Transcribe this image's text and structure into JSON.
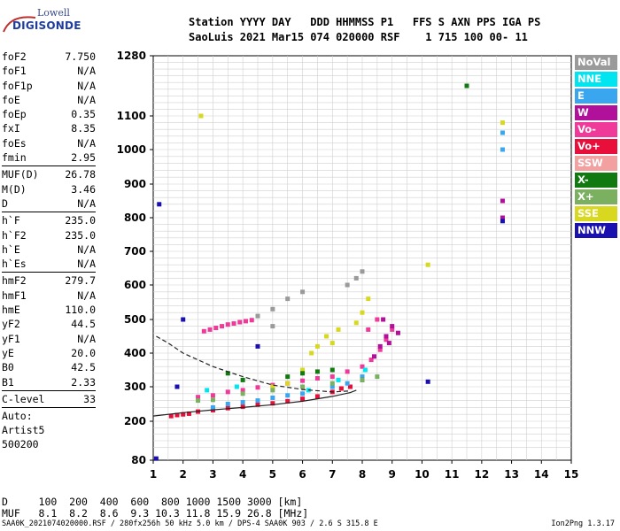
{
  "logo": {
    "brand": "Lowell",
    "product": "DIGISONDE"
  },
  "header": {
    "line1": "Station YYYY DAY   DDD HHMMSS P1   FFS S AXN PPS IGA PS",
    "line2": "SaoLuis 2021 Mar15 074 020000 RSF    1 715 100 00- 11"
  },
  "params": [
    {
      "label": "foF2",
      "value": "7.750"
    },
    {
      "label": "foF1",
      "value": "N/A"
    },
    {
      "label": "foF1p",
      "value": "N/A"
    },
    {
      "label": "foE",
      "value": "N/A"
    },
    {
      "label": "foEp",
      "value": "0.35"
    },
    {
      "label": "fxI",
      "value": "8.35"
    },
    {
      "label": "foEs",
      "value": "N/A"
    },
    {
      "label": "fmin",
      "value": "2.95"
    },
    {
      "sep": true
    },
    {
      "label": "MUF(D)",
      "value": "26.78"
    },
    {
      "label": "M(D)",
      "value": "3.46"
    },
    {
      "label": "D",
      "value": "N/A"
    },
    {
      "sep": true
    },
    {
      "label": "h`F",
      "value": "235.0"
    },
    {
      "label": "h`F2",
      "value": "235.0"
    },
    {
      "label": "h`E",
      "value": "N/A"
    },
    {
      "label": "h`Es",
      "value": "N/A"
    },
    {
      "sep": true
    },
    {
      "label": "hmF2",
      "value": "279.7"
    },
    {
      "label": "hmF1",
      "value": "N/A"
    },
    {
      "label": "hmE",
      "value": "110.0"
    },
    {
      "label": "yF2",
      "value": "44.5"
    },
    {
      "label": "yF1",
      "value": "N/A"
    },
    {
      "label": "yE",
      "value": "20.0"
    },
    {
      "label": "B0",
      "value": "42.5"
    },
    {
      "label": "B1",
      "value": "2.33"
    },
    {
      "sep": true
    },
    {
      "label": "C-level",
      "value": "33"
    },
    {
      "sep": true
    },
    {
      "text": "Auto:"
    },
    {
      "text": "Artist5"
    },
    {
      "text": "500200"
    }
  ],
  "legend": [
    {
      "label": "NoVal",
      "color": "#9a9a9a"
    },
    {
      "label": "NNE",
      "color": "#00e5f0"
    },
    {
      "label": "E",
      "color": "#3aa6f0"
    },
    {
      "label": "W",
      "color": "#b0109a"
    },
    {
      "label": "Vo-",
      "color": "#f03a9a"
    },
    {
      "label": "Vo+",
      "color": "#e8103a"
    },
    {
      "label": "SSW",
      "color": "#f2a0a0"
    },
    {
      "label": "X-",
      "color": "#107a10"
    },
    {
      "label": "X+",
      "color": "#7ab060"
    },
    {
      "label": "SSE",
      "color": "#d8d820"
    },
    {
      "label": "NNW",
      "color": "#1a10b0"
    }
  ],
  "muf_table": {
    "row1": "D     100  200  400  600  800 1000 1500 3000 [km]",
    "row2": "MUF   8.1  8.2  8.6  9.3 10.3 11.8 15.9 26.8 [MHz]"
  },
  "footer": {
    "left": "SAA0K_2021074020000.RSF / 280fx256h 50 kHz 5.0 km / DPS-4 SAA0K 903 / 2.6 S 315.8 E",
    "right": "Ion2Png 1.3.17"
  },
  "chart_data": {
    "type": "scatter",
    "x_ticks": [
      "1",
      "2",
      "3",
      "4",
      "5",
      "6",
      "7",
      "8",
      "9",
      "10",
      "11",
      "12",
      "13",
      "14",
      "15"
    ],
    "y_ticks": [
      "80",
      "200",
      "300",
      "400",
      "500",
      "600",
      "700",
      "800",
      "900",
      "1000",
      "1100",
      "1280"
    ],
    "xlim": [
      1,
      15
    ],
    "y_axis_scale": "ionospheric virtual height (nonlinear), 80 to 1280 km",
    "grid": true,
    "series": [
      {
        "color": "#e8103a",
        "points": [
          [
            1.6,
            215
          ],
          [
            1.8,
            218
          ],
          [
            2.0,
            220
          ],
          [
            2.2,
            222
          ],
          [
            2.5,
            228
          ],
          [
            3.0,
            232
          ],
          [
            3.5,
            238
          ],
          [
            4.0,
            242
          ],
          [
            4.5,
            248
          ],
          [
            5.0,
            252
          ],
          [
            5.5,
            258
          ],
          [
            6.0,
            265
          ],
          [
            6.5,
            272
          ],
          [
            7.0,
            285
          ],
          [
            7.3,
            295
          ],
          [
            7.6,
            300
          ]
        ]
      },
      {
        "color": "#f03a9a",
        "points": [
          [
            2.7,
            465
          ],
          [
            2.9,
            470
          ],
          [
            3.1,
            475
          ],
          [
            3.3,
            480
          ],
          [
            3.5,
            485
          ],
          [
            3.7,
            488
          ],
          [
            3.9,
            492
          ],
          [
            4.1,
            495
          ],
          [
            4.3,
            498
          ],
          [
            2.5,
            270
          ],
          [
            3.0,
            275
          ],
          [
            3.5,
            285
          ],
          [
            4.0,
            290
          ],
          [
            4.5,
            298
          ],
          [
            5.0,
            305
          ],
          [
            5.5,
            310
          ],
          [
            6.0,
            318
          ],
          [
            6.5,
            325
          ],
          [
            7.0,
            330
          ],
          [
            7.5,
            345
          ],
          [
            8.0,
            360
          ],
          [
            8.3,
            380
          ],
          [
            8.6,
            410
          ],
          [
            8.8,
            440
          ],
          [
            9.0,
            470
          ],
          [
            8.5,
            500
          ],
          [
            8.2,
            470
          ]
        ]
      },
      {
        "color": "#b0109a",
        "points": [
          [
            8.4,
            390
          ],
          [
            8.6,
            420
          ],
          [
            8.8,
            450
          ],
          [
            9.0,
            480
          ],
          [
            9.2,
            460
          ],
          [
            8.7,
            500
          ],
          [
            8.9,
            430
          ],
          [
            12.7,
            800
          ],
          [
            12.7,
            850
          ]
        ]
      },
      {
        "color": "#d8d820",
        "points": [
          [
            6.0,
            350
          ],
          [
            6.3,
            400
          ],
          [
            6.5,
            420
          ],
          [
            6.8,
            450
          ],
          [
            7.0,
            430
          ],
          [
            7.2,
            470
          ],
          [
            7.8,
            490
          ],
          [
            8.0,
            520
          ],
          [
            8.2,
            560
          ],
          [
            5.0,
            300
          ],
          [
            5.5,
            310
          ],
          [
            2.6,
            1100
          ],
          [
            12.7,
            1080
          ],
          [
            10.2,
            660
          ]
        ]
      },
      {
        "color": "#3aa6f0",
        "points": [
          [
            3.0,
            240
          ],
          [
            3.5,
            250
          ],
          [
            4.0,
            255
          ],
          [
            4.5,
            260
          ],
          [
            5.0,
            268
          ],
          [
            5.5,
            275
          ],
          [
            6.0,
            280
          ],
          [
            7.0,
            300
          ],
          [
            7.5,
            310
          ],
          [
            8.0,
            330
          ],
          [
            12.7,
            1000
          ],
          [
            12.7,
            1050
          ]
        ]
      },
      {
        "color": "#107a10",
        "points": [
          [
            3.5,
            340
          ],
          [
            4.0,
            320
          ],
          [
            5.5,
            330
          ],
          [
            6.0,
            340
          ],
          [
            6.5,
            345
          ],
          [
            7.0,
            350
          ],
          [
            8.0,
            320
          ],
          [
            11.5,
            1190
          ]
        ]
      },
      {
        "color": "#7ab060",
        "points": [
          [
            2.5,
            260
          ],
          [
            3.0,
            262
          ],
          [
            4.0,
            280
          ],
          [
            5.0,
            290
          ],
          [
            6.0,
            300
          ],
          [
            7.0,
            310
          ],
          [
            8.0,
            320
          ],
          [
            8.5,
            330
          ]
        ]
      },
      {
        "color": "#9a9a9a",
        "points": [
          [
            4.5,
            510
          ],
          [
            5.0,
            530
          ],
          [
            5.5,
            560
          ],
          [
            6.0,
            580
          ],
          [
            7.5,
            600
          ],
          [
            7.8,
            620
          ],
          [
            8.0,
            640
          ],
          [
            5.0,
            480
          ]
        ]
      },
      {
        "color": "#1a10b0",
        "points": [
          [
            1.2,
            840
          ],
          [
            2.0,
            500
          ],
          [
            1.8,
            300
          ],
          [
            12.7,
            790
          ],
          [
            1.1,
            85
          ],
          [
            10.2,
            315
          ],
          [
            4.5,
            420
          ]
        ]
      },
      {
        "color": "#00e5f0",
        "points": [
          [
            2.8,
            290
          ],
          [
            3.8,
            300
          ],
          [
            6.2,
            290
          ],
          [
            7.2,
            320
          ],
          [
            8.1,
            350
          ]
        ]
      }
    ],
    "curves": [
      {
        "style": "solid",
        "points": [
          [
            1,
            215
          ],
          [
            2,
            225
          ],
          [
            3,
            233
          ],
          [
            4,
            240
          ],
          [
            5,
            248
          ],
          [
            6,
            258
          ],
          [
            7,
            272
          ],
          [
            7.6,
            283
          ],
          [
            7.8,
            290
          ]
        ]
      },
      {
        "style": "dashed",
        "points": [
          [
            1.1,
            450
          ],
          [
            1.5,
            430
          ],
          [
            2,
            400
          ],
          [
            3,
            360
          ],
          [
            4,
            330
          ],
          [
            5,
            305
          ],
          [
            6,
            292
          ],
          [
            7,
            285
          ],
          [
            7.6,
            288
          ]
        ]
      }
    ]
  }
}
